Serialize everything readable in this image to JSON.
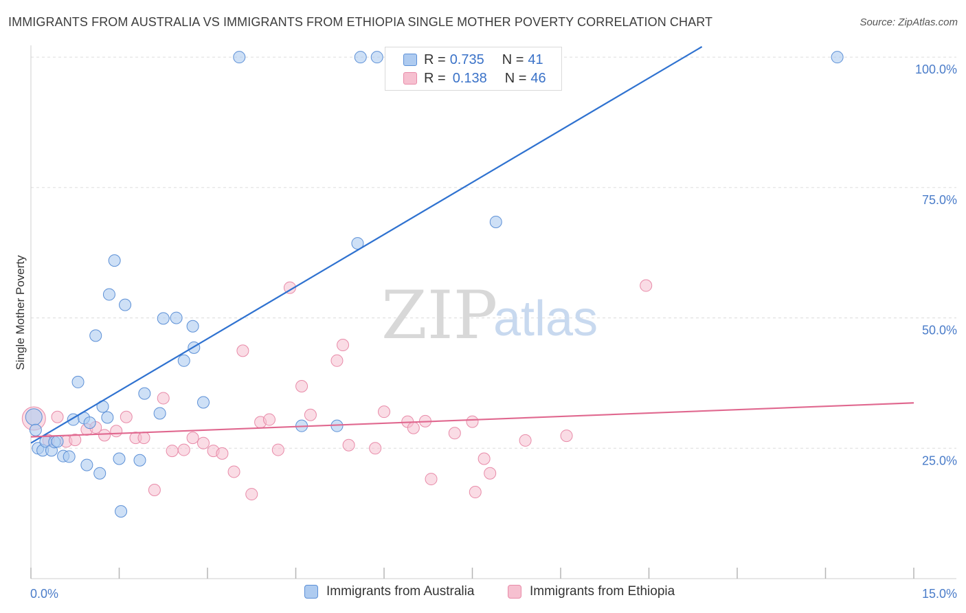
{
  "title": "IMMIGRANTS FROM AUSTRALIA VS IMMIGRANTS FROM ETHIOPIA SINGLE MOTHER POVERTY CORRELATION CHART",
  "source": "Source: ZipAtlas.com",
  "watermark": {
    "zip": "ZIP",
    "atlas": "atlas"
  },
  "colors": {
    "australia_fill": "#aecbf0",
    "australia_stroke": "#5b8fd6",
    "australia_line": "#2f72d0",
    "ethiopia_fill": "#f6c0d0",
    "ethiopia_stroke": "#e88aa8",
    "ethiopia_line": "#e0688f",
    "axis_text": "#4a7cc9"
  },
  "legend_top": {
    "rows": [
      {
        "r_key": "R =",
        "r_value": "0.735",
        "n_key": "N =",
        "n_value": "41"
      },
      {
        "r_key": "R =",
        "r_value": "0.138",
        "n_key": "N =",
        "n_value": "46"
      }
    ]
  },
  "legend_bottom": {
    "australia": "Immigrants from Australia",
    "ethiopia": "Immigrants from Ethiopia"
  },
  "chart_data": {
    "type": "scatter",
    "title": "IMMIGRANTS FROM AUSTRALIA VS IMMIGRANTS FROM ETHIOPIA SINGLE MOTHER POVERTY CORRELATION CHART",
    "xlabel": "",
    "ylabel": "Single Mother Poverty",
    "xlim": [
      0,
      15
    ],
    "ylim": [
      0,
      102
    ],
    "x_tick_labels": [
      "0.0%",
      "15.0%"
    ],
    "y_ticks": [
      25,
      50,
      75,
      100
    ],
    "y_tick_labels": [
      "25.0%",
      "50.0%",
      "75.0%",
      "100.0%"
    ],
    "grid": true,
    "series": [
      {
        "name": "Immigrants from Australia",
        "R": 0.735,
        "N": 41,
        "trend": {
          "x0": 0,
          "y0": 26.0,
          "x1": 11.4,
          "y1": 102
        },
        "points": [
          [
            0.05,
            31.0
          ],
          [
            0.08,
            28.5
          ],
          [
            0.12,
            25.0
          ],
          [
            0.2,
            24.6
          ],
          [
            0.25,
            26.3
          ],
          [
            0.35,
            24.6
          ],
          [
            0.4,
            26.2
          ],
          [
            0.45,
            26.3
          ],
          [
            0.55,
            23.5
          ],
          [
            0.65,
            23.4
          ],
          [
            0.72,
            30.5
          ],
          [
            0.8,
            37.7
          ],
          [
            0.9,
            30.8
          ],
          [
            0.95,
            21.8
          ],
          [
            1.0,
            29.9
          ],
          [
            1.1,
            46.6
          ],
          [
            1.17,
            20.2
          ],
          [
            1.22,
            33.0
          ],
          [
            1.3,
            30.9
          ],
          [
            1.33,
            54.5
          ],
          [
            1.42,
            61.0
          ],
          [
            1.5,
            23.0
          ],
          [
            1.53,
            12.9
          ],
          [
            1.6,
            52.5
          ],
          [
            1.85,
            22.7
          ],
          [
            1.93,
            35.5
          ],
          [
            2.19,
            31.7
          ],
          [
            2.25,
            49.9
          ],
          [
            2.47,
            50.0
          ],
          [
            2.6,
            41.8
          ],
          [
            2.75,
            48.4
          ],
          [
            2.77,
            44.3
          ],
          [
            2.93,
            33.8
          ],
          [
            3.54,
            100
          ],
          [
            4.6,
            29.3
          ],
          [
            5.2,
            29.3
          ],
          [
            5.6,
            100
          ],
          [
            5.88,
            100
          ],
          [
            5.55,
            64.3
          ],
          [
            7.9,
            68.4
          ],
          [
            13.7,
            100
          ]
        ]
      },
      {
        "name": "Immigrants from Ethiopia",
        "R": 0.138,
        "N": 46,
        "trend": {
          "x0": 0,
          "y0": 27.2,
          "x1": 15,
          "y1": 33.7
        },
        "points": [
          [
            0.05,
            30.7
          ],
          [
            0.3,
            26.5
          ],
          [
            0.45,
            31.0
          ],
          [
            0.6,
            26.3
          ],
          [
            0.75,
            26.6
          ],
          [
            0.95,
            28.6
          ],
          [
            1.1,
            29.0
          ],
          [
            1.25,
            27.5
          ],
          [
            1.45,
            28.3
          ],
          [
            1.62,
            31.0
          ],
          [
            1.78,
            27.0
          ],
          [
            1.92,
            27.0
          ],
          [
            2.1,
            17.0
          ],
          [
            2.25,
            34.6
          ],
          [
            2.4,
            24.5
          ],
          [
            2.6,
            24.7
          ],
          [
            2.75,
            27.0
          ],
          [
            2.93,
            26.0
          ],
          [
            3.1,
            24.5
          ],
          [
            3.25,
            24.0
          ],
          [
            3.45,
            20.5
          ],
          [
            3.6,
            43.7
          ],
          [
            3.75,
            16.2
          ],
          [
            3.9,
            30.0
          ],
          [
            4.05,
            30.5
          ],
          [
            4.2,
            24.7
          ],
          [
            4.4,
            55.8
          ],
          [
            4.6,
            36.9
          ],
          [
            4.75,
            31.4
          ],
          [
            5.2,
            41.8
          ],
          [
            5.3,
            44.8
          ],
          [
            5.4,
            25.6
          ],
          [
            5.85,
            25.0
          ],
          [
            6.0,
            32.0
          ],
          [
            6.4,
            30.1
          ],
          [
            6.5,
            28.9
          ],
          [
            6.7,
            30.2
          ],
          [
            6.8,
            19.1
          ],
          [
            7.2,
            27.9
          ],
          [
            7.5,
            30.1
          ],
          [
            7.55,
            16.6
          ],
          [
            7.7,
            23.0
          ],
          [
            7.8,
            20.2
          ],
          [
            8.4,
            26.5
          ],
          [
            9.1,
            27.4
          ],
          [
            10.45,
            56.2
          ]
        ]
      }
    ]
  }
}
